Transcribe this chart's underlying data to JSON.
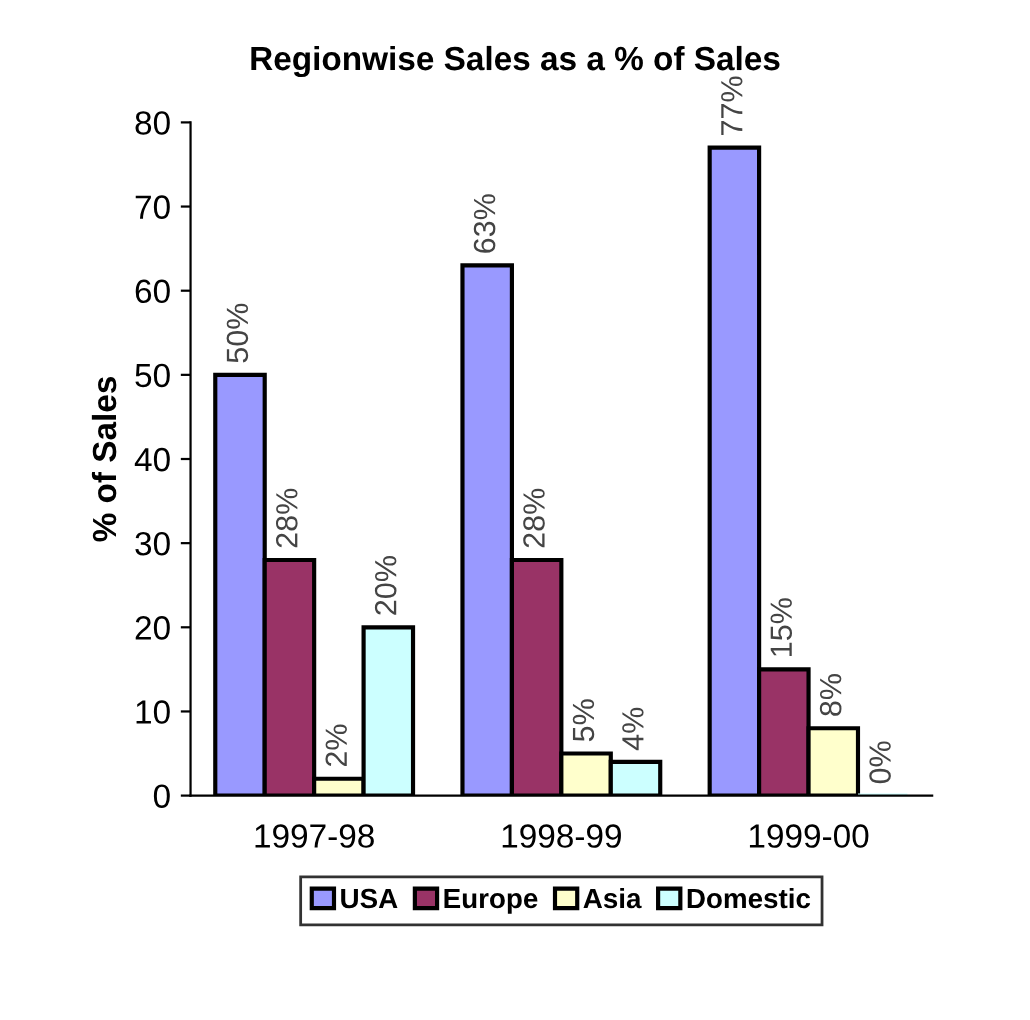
{
  "chart_data": {
    "type": "bar",
    "title": "Regionwise Sales as a % of Sales",
    "ylabel": "% of Sales",
    "categories": [
      "1997-98",
      "1998-99",
      "1999-00"
    ],
    "series": [
      {
        "name": "USA",
        "color": "#9999ff",
        "values": [
          50,
          63,
          77
        ],
        "value_labels": [
          "50%",
          "63%",
          "77%"
        ]
      },
      {
        "name": "Europe",
        "color": "#993366",
        "values": [
          28,
          28,
          15
        ],
        "value_labels": [
          "28%",
          "28%",
          "15%"
        ]
      },
      {
        "name": "Asia",
        "color": "#ffffcc",
        "values": [
          2,
          5,
          8
        ],
        "value_labels": [
          "2%",
          "5%",
          "8%"
        ]
      },
      {
        "name": "Domestic",
        "color": "#ccffff",
        "values": [
          20,
          4,
          0
        ],
        "value_labels": [
          "20%",
          "4%",
          "0%"
        ]
      }
    ],
    "ylim": [
      0,
      80
    ],
    "yticks": [
      0,
      10,
      20,
      30,
      40,
      50,
      60,
      70,
      80
    ],
    "grid": false,
    "legend": "bottom"
  }
}
